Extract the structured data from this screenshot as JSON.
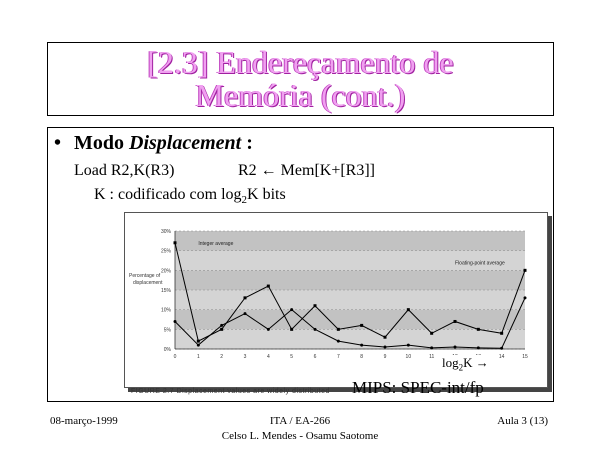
{
  "title": {
    "line1": "[2.3]  Endereçamento de",
    "line2": "Memória  (cont.)"
  },
  "content": {
    "bullet_symbol": "•",
    "mode_label": "Modo ",
    "mode_italic": "Displacement",
    "mode_colon": " :",
    "load_instr": "Load R2,K(R3)",
    "r2_assign": "R2 ← Mem[K+[R3]]",
    "k_coded_prefix": "K : codificado com log",
    "k_coded_sub": "2",
    "k_coded_suffix": "K bits"
  },
  "figure": {
    "caption": "FIGURE 2.7  Displacement values are widely distributed",
    "mips_label": "MIPS: SPEC-int/fp",
    "log2k_label": "log",
    "log2k_sub": "2",
    "log2k_suffix": "K →"
  },
  "chart_data": {
    "type": "line",
    "ylabel": "Percentage of displacement",
    "ylim": [
      0,
      30
    ],
    "yticks": [
      "0%",
      "5%",
      "10%",
      "15%",
      "20%",
      "25%",
      "30%"
    ],
    "x": [
      0,
      1,
      2,
      3,
      4,
      5,
      6,
      7,
      8,
      9,
      10,
      11,
      12,
      13,
      14,
      15
    ],
    "grid": "horizontal bands",
    "series": [
      {
        "name": "Integer average",
        "values": [
          27,
          2,
          5,
          13,
          16,
          5,
          11,
          5,
          6,
          3,
          10,
          4,
          7,
          5,
          4,
          20
        ]
      },
      {
        "name": "Floating-point average",
        "values": [
          7,
          1,
          6,
          9,
          5,
          10,
          5,
          2,
          1,
          0.5,
          1,
          0.3,
          0.5,
          0.3,
          0.2,
          13
        ]
      }
    ]
  },
  "footer": {
    "date": "08-março-1999",
    "course": "ITA / EA-266",
    "authors": "Celso L. Mendes - Osamu Saotome",
    "lesson": "Aula 3 (13)"
  }
}
